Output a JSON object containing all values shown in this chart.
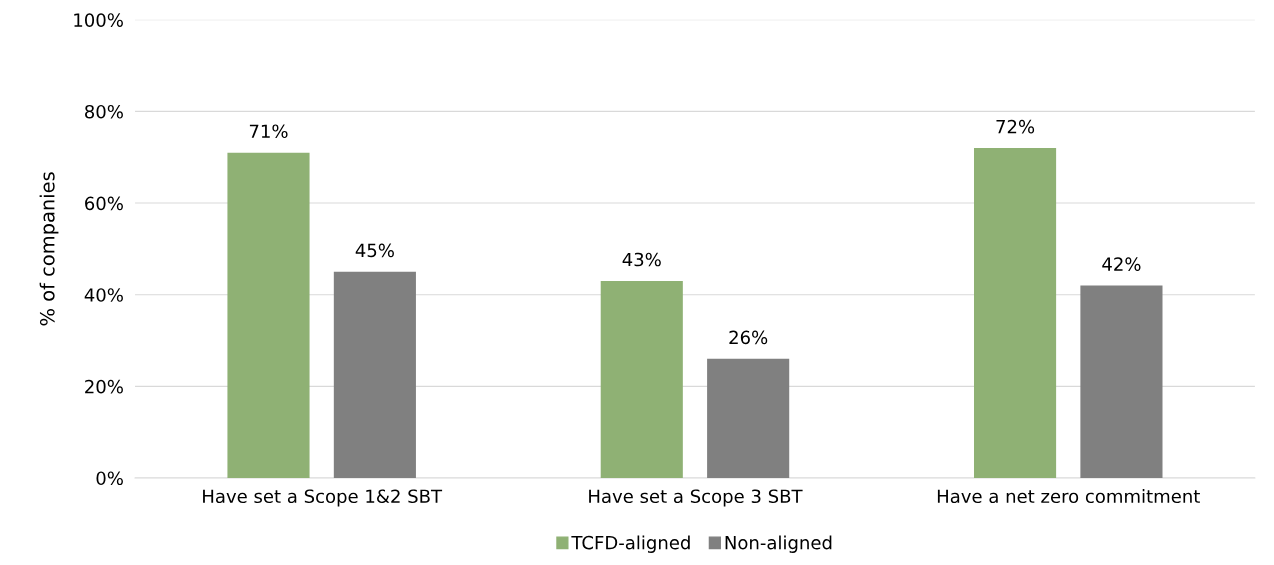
{
  "chart_data": {
    "type": "bar",
    "ylabel": "% of companies",
    "categories": [
      "Have set a Scope 1&2 SBT",
      "Have set a Scope 3 SBT",
      "Have a net zero commitment"
    ],
    "series": [
      {
        "name": "TCFD-aligned",
        "color": "#8fb174",
        "values": [
          71,
          43,
          72
        ],
        "value_labels": [
          "71%",
          "43%",
          "72%"
        ]
      },
      {
        "name": "Non-aligned",
        "color": "#808080",
        "values": [
          45,
          26,
          42
        ],
        "value_labels": [
          "45%",
          "26%",
          "42%"
        ]
      }
    ],
    "ylim": [
      0,
      100
    ],
    "yticks": [
      {
        "value": 0,
        "label": "0%"
      },
      {
        "value": 20,
        "label": "20%"
      },
      {
        "value": 40,
        "label": "40%"
      },
      {
        "value": 60,
        "label": "60%"
      },
      {
        "value": 80,
        "label": "80%"
      },
      {
        "value": 100,
        "label": "100%"
      }
    ],
    "grid": "y",
    "legend": "bottom"
  }
}
